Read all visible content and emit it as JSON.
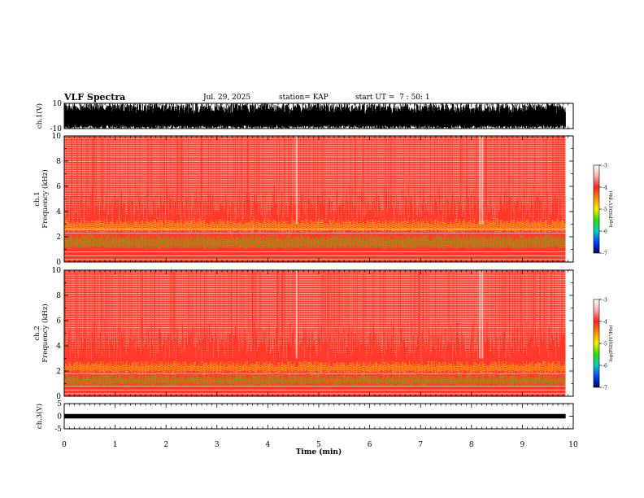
{
  "header": {
    "title": "VLF Spectra",
    "date": "Jul. 29, 2025",
    "station": "station= KAP",
    "start": "start UT =  7 : 50: 1"
  },
  "colors": {
    "spectrum_bg": "#ff3a2a",
    "speckle": "#ffe6e0",
    "yellow_band": "#e8e600",
    "green_band": "#48e000",
    "waveform": "#000000"
  },
  "chart_data": [
    {
      "type": "line",
      "name": "ch1-waveform",
      "ylabel": "ch.1(V)",
      "yticks": [
        "10",
        "-10"
      ],
      "ylim": [
        -10,
        10
      ],
      "xlim": [
        0,
        10
      ],
      "data_end_min": 9.85
    },
    {
      "type": "heatmap",
      "name": "ch1-spectrogram",
      "ylabel": "ch.1",
      "ylabel2": "Frequency (kHz)",
      "yticks": [
        "0",
        "2",
        "4",
        "6",
        "8",
        "10"
      ],
      "ylim": [
        0,
        10
      ],
      "xlim": [
        0,
        10
      ],
      "data_end_min": 9.85,
      "colorbar": {
        "label": "log(PSD)(V²/Hz)",
        "ticks": [
          "-3",
          "-4",
          "-5",
          "-6",
          "-7"
        ],
        "range": [
          -7,
          -3
        ]
      }
    },
    {
      "type": "heatmap",
      "name": "ch2-spectrogram",
      "ylabel": "ch.2",
      "ylabel2": "Frequency (kHz)",
      "yticks": [
        "0",
        "2",
        "4",
        "6",
        "8",
        "10"
      ],
      "ylim": [
        0,
        10
      ],
      "xlim": [
        0,
        10
      ],
      "data_end_min": 9.85,
      "colorbar": {
        "label": "log(PSD)(V²/Hz)",
        "ticks": [
          "-3",
          "-4",
          "-5",
          "-6",
          "-7"
        ],
        "range": [
          -7,
          -3
        ]
      }
    },
    {
      "type": "line",
      "name": "ch3-waveform",
      "ylabel": "ch.3(V)",
      "yticks": [
        "5",
        "0",
        "-5"
      ],
      "ylim": [
        -5,
        5
      ],
      "xlim": [
        0,
        10
      ],
      "level": 0,
      "data_end_min": 9.85
    }
  ],
  "xaxis": {
    "label": "Time (min)",
    "ticks": [
      "0",
      "1",
      "2",
      "3",
      "4",
      "5",
      "6",
      "7",
      "8",
      "9",
      "10"
    ]
  }
}
